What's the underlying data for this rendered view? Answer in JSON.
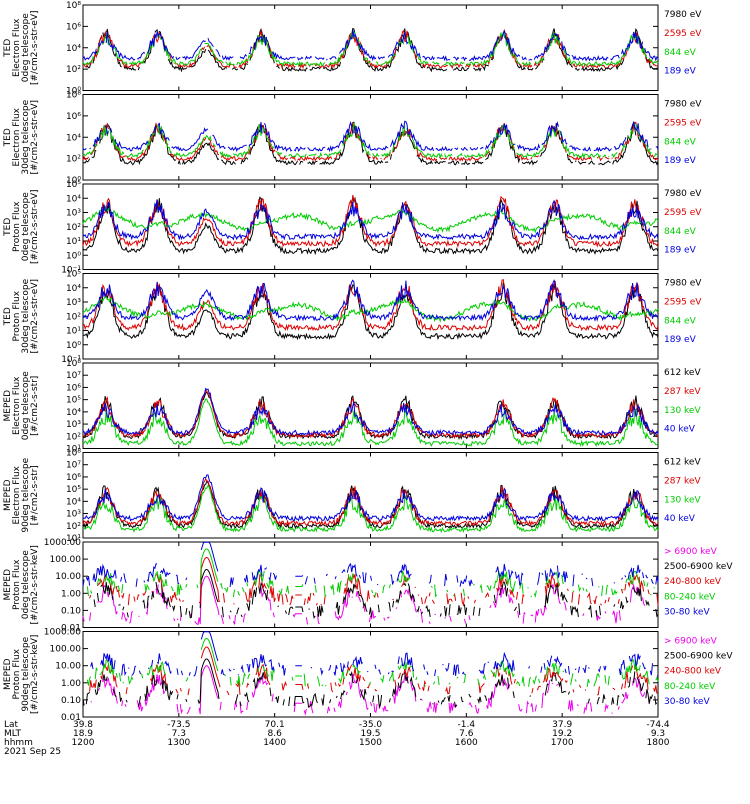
{
  "chart_data": [
    {
      "type": "line",
      "panel": 1,
      "ylabel": [
        "TED",
        "Electron Flux",
        "0deg telescope",
        "[#/cm2-s-str-eV]"
      ],
      "yscale": "log",
      "ylim": [
        1,
        100000000
      ],
      "ytick_labels": [
        "10⁰",
        "10²",
        "10⁴",
        "10⁶",
        "10⁸"
      ],
      "series": [
        {
          "name": "7980 eV",
          "color": "#000000",
          "level": 2.0
        },
        {
          "name": "2595 eV",
          "color": "#dd0000",
          "level": 2.3
        },
        {
          "name": "844 eV",
          "color": "#00cc00",
          "level": 2.5
        },
        {
          "name": "189 eV",
          "color": "#0000dd",
          "level": 3.0
        }
      ]
    },
    {
      "type": "line",
      "panel": 2,
      "ylabel": [
        "TED",
        "Electron Flux",
        "30deg telescope",
        "[#/cm2-s-str-eV]"
      ],
      "yscale": "log",
      "ylim": [
        1,
        100000000
      ],
      "ytick_labels": [
        "10⁰",
        "10²",
        "10⁴",
        "10⁶",
        "10⁸"
      ],
      "series": [
        {
          "name": "7980 eV",
          "color": "#000000",
          "level": 1.6
        },
        {
          "name": "2595 eV",
          "color": "#dd0000",
          "level": 2.0
        },
        {
          "name": "844 eV",
          "color": "#00cc00",
          "level": 2.3
        },
        {
          "name": "189 eV",
          "color": "#0000dd",
          "level": 2.9
        }
      ]
    },
    {
      "type": "line",
      "panel": 3,
      "ylabel": [
        "TED",
        "Proton Flux",
        "0deg telescope",
        "[#/cm2-s-str-eV]"
      ],
      "yscale": "log",
      "ylim": [
        0.1,
        100000
      ],
      "ytick_labels": [
        "10⁻¹",
        "10⁰",
        "10¹",
        "10²",
        "10³",
        "10⁴",
        "10⁵"
      ],
      "series": [
        {
          "name": "7980 eV",
          "color": "#000000",
          "level": 0.3
        },
        {
          "name": "2595 eV",
          "color": "#dd0000",
          "level": 0.8
        },
        {
          "name": "844 eV",
          "color": "#00cc00",
          "level": 2.3
        },
        {
          "name": "189 eV",
          "color": "#0000dd",
          "level": 1.3
        }
      ]
    },
    {
      "type": "line",
      "panel": 4,
      "ylabel": [
        "TED",
        "Proton Flux",
        "30deg telescope",
        "[#/cm2-s-str-eV]"
      ],
      "yscale": "log",
      "ylim": [
        0.1,
        100000
      ],
      "ytick_labels": [
        "10⁻¹",
        "10⁰",
        "10¹",
        "10²",
        "10³",
        "10⁴",
        "10⁵"
      ],
      "series": [
        {
          "name": "7980 eV",
          "color": "#000000",
          "level": 0.6
        },
        {
          "name": "2595 eV",
          "color": "#dd0000",
          "level": 1.2
        },
        {
          "name": "844 eV",
          "color": "#00cc00",
          "level": 2.3
        },
        {
          "name": "189 eV",
          "color": "#0000dd",
          "level": 1.9
        }
      ]
    },
    {
      "type": "line",
      "panel": 5,
      "ylabel": [
        "MEPED",
        "Electron Flux",
        "0deg telescope",
        "[#/cm2-s-str]"
      ],
      "yscale": "log",
      "ylim": [
        10,
        100000000
      ],
      "ytick_labels": [
        "10¹",
        "10²",
        "10³",
        "10⁴",
        "10⁵",
        "10⁶",
        "10⁷",
        "10⁸"
      ],
      "series": [
        {
          "name": "612 keV",
          "color": "#000000",
          "level": 2.0
        },
        {
          "name": "287 keV",
          "color": "#dd0000",
          "level": 2.1
        },
        {
          "name": "130 keV",
          "color": "#00cc00",
          "level": 1.4
        },
        {
          "name": "40 keV",
          "color": "#0000dd",
          "level": 2.3
        }
      ]
    },
    {
      "type": "line",
      "panel": 6,
      "ylabel": [
        "MEPED",
        "Electron Flux",
        "90deg telescope",
        "[#/cm2-s-str]"
      ],
      "yscale": "log",
      "ylim": [
        10,
        100000000
      ],
      "ytick_labels": [
        "10¹",
        "10²",
        "10³",
        "10⁴",
        "10⁵",
        "10⁶",
        "10⁷",
        "10⁸"
      ],
      "series": [
        {
          "name": "612 keV",
          "color": "#000000",
          "level": 2.0
        },
        {
          "name": "287 keV",
          "color": "#dd0000",
          "level": 2.2
        },
        {
          "name": "130 keV",
          "color": "#00cc00",
          "level": 1.7
        },
        {
          "name": "40 keV",
          "color": "#0000dd",
          "level": 2.6
        }
      ]
    },
    {
      "type": "line",
      "panel": 7,
      "ylabel": [
        "MEPED",
        "Proton Flux",
        "0deg telescope",
        "[#/cm2-s-str-keV]"
      ],
      "yscale": "log",
      "ylim": [
        0.01,
        1000
      ],
      "ytick_labels": [
        "0.01",
        "0.10",
        "1.00",
        "10.00",
        "100.00",
        "1000.00"
      ],
      "series": [
        {
          "name": "> 6900 keV",
          "color": "#ee00ee",
          "level": -1.6
        },
        {
          "name": "2500-6900 keV",
          "color": "#000000",
          "level": -1.2
        },
        {
          "name": "240-800 keV",
          "color": "#dd0000",
          "level": -0.5
        },
        {
          "name": "80-240 keV",
          "color": "#00cc00",
          "level": 0.0
        },
        {
          "name": "30-80 keV",
          "color": "#0000dd",
          "level": 0.6
        }
      ]
    },
    {
      "type": "line",
      "panel": 8,
      "ylabel": [
        "MEPED",
        "Proton Flux",
        "90deg telescope",
        "[#/cm2-s-str-keV]"
      ],
      "yscale": "log",
      "ylim": [
        0.01,
        1000
      ],
      "ytick_labels": [
        "0.01",
        "0.10",
        "1.00",
        "10.00",
        "100.00",
        "1000.00"
      ],
      "series": [
        {
          "name": "> 6900 keV",
          "color": "#ee00ee",
          "level": -1.6
        },
        {
          "name": "2500-6900 keV",
          "color": "#000000",
          "level": -1.2
        },
        {
          "name": "240-800 keV",
          "color": "#dd0000",
          "level": -0.5
        },
        {
          "name": "80-240 keV",
          "color": "#00cc00",
          "level": 0.0
        },
        {
          "name": "30-80 keV",
          "color": "#0000dd",
          "level": 0.6
        }
      ]
    }
  ],
  "x_axis": {
    "times": [
      "1200",
      "1300",
      "1400",
      "1500",
      "1600",
      "1700",
      "1800"
    ],
    "lat_row": [
      "39.8",
      "-73.5",
      "70.1",
      "-35.0",
      "-1.4",
      "37.9",
      "-74.4"
    ],
    "mlt_row": [
      "18.9",
      "7.3",
      "8.6",
      "19.5",
      "7.6",
      "19.2",
      "9.3"
    ],
    "row_labels": [
      "Lat",
      "MLT",
      "hhmm"
    ],
    "date": "2021 Sep 25"
  }
}
